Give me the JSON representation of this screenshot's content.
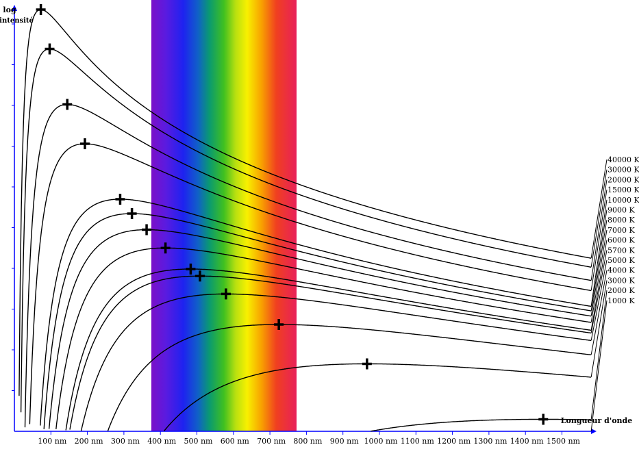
{
  "chart_data": {
    "type": "line",
    "title": "",
    "ylabel_line1": "log",
    "ylabel_line2": "intensité",
    "xlabel": "Longueur d'onde",
    "xlim": [
      0,
      1580
    ],
    "x_ticks": [
      100,
      200,
      300,
      400,
      500,
      600,
      700,
      800,
      900,
      1000,
      1100,
      1200,
      1300,
      1400,
      1500
    ],
    "x_tick_labels": [
      "100 nm",
      "200 nm",
      "300 nm",
      "400 nm",
      "500 nm",
      "600 nm",
      "700 nm",
      "800 nm",
      "900 nm",
      "1000 nm",
      "1100 nm",
      "1200 nm",
      "1300 nm",
      "1400 nm",
      "1500 nm"
    ],
    "y_ticks_count": 10,
    "visible_spectrum_nm": [
      380,
      780
    ],
    "series": [
      {
        "name": "40000 K",
        "temperature_K": 40000
      },
      {
        "name": "30000 K",
        "temperature_K": 30000
      },
      {
        "name": "20000 K",
        "temperature_K": 20000
      },
      {
        "name": "15000 K",
        "temperature_K": 15000
      },
      {
        "name": "10000 K",
        "temperature_K": 10000
      },
      {
        "name": "9000 K",
        "temperature_K": 9000
      },
      {
        "name": "8000 K",
        "temperature_K": 8000
      },
      {
        "name": "7000 K",
        "temperature_K": 7000
      },
      {
        "name": "6000 K",
        "temperature_K": 6000
      },
      {
        "name": "5700 K",
        "temperature_K": 5700
      },
      {
        "name": "5000 K",
        "temperature_K": 5000
      },
      {
        "name": "4000 K",
        "temperature_K": 4000
      },
      {
        "name": "3000 K",
        "temperature_K": 3000
      },
      {
        "name": "2000 K",
        "temperature_K": 2000
      },
      {
        "name": "1000 K",
        "temperature_K": 1000
      }
    ],
    "grid": false,
    "legend": "right"
  }
}
